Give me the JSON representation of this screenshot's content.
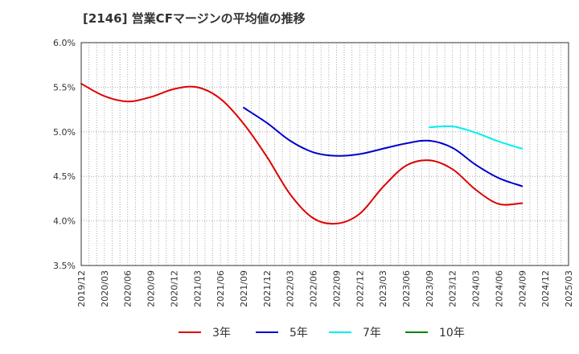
{
  "chart_data": {
    "type": "line",
    "title": "[2146]  営業CFマージンの平均値の推移",
    "xlabel": "",
    "ylabel": "",
    "ylim": [
      3.5,
      6.0
    ],
    "y_ticks": [
      "3.5%",
      "4.0%",
      "4.5%",
      "5.0%",
      "5.5%",
      "6.0%"
    ],
    "y_tick_values": [
      3.5,
      4.0,
      4.5,
      5.0,
      5.5,
      6.0
    ],
    "x_ticks": [
      "2019/12",
      "2020/03",
      "2020/06",
      "2020/09",
      "2020/12",
      "2021/03",
      "2021/06",
      "2021/09",
      "2021/12",
      "2022/03",
      "2022/06",
      "2022/09",
      "2022/12",
      "2023/03",
      "2023/06",
      "2023/09",
      "2023/12",
      "2024/03",
      "2024/06",
      "2024/09",
      "2024/12",
      "2025/03"
    ],
    "grid": true,
    "legend_position": "bottom",
    "series": [
      {
        "name": "3年",
        "color": "#dd0000",
        "x": [
          "2019/12",
          "2020/03",
          "2020/06",
          "2020/09",
          "2020/12",
          "2021/03",
          "2021/06",
          "2021/09",
          "2021/12",
          "2022/03",
          "2022/06",
          "2022/09",
          "2022/12",
          "2023/03",
          "2023/06",
          "2023/09",
          "2023/12",
          "2024/03",
          "2024/06",
          "2024/09"
        ],
        "values": [
          5.54,
          5.4,
          5.34,
          5.39,
          5.48,
          5.5,
          5.37,
          5.09,
          4.72,
          4.3,
          4.03,
          3.97,
          4.08,
          4.38,
          4.62,
          4.68,
          4.58,
          4.35,
          4.19,
          4.2
        ]
      },
      {
        "name": "5年",
        "color": "#0000cc",
        "x": [
          "2021/09",
          "2021/12",
          "2022/03",
          "2022/06",
          "2022/09",
          "2022/12",
          "2023/03",
          "2023/06",
          "2023/09",
          "2023/12",
          "2024/03",
          "2024/06",
          "2024/09"
        ],
        "values": [
          5.27,
          5.1,
          4.9,
          4.77,
          4.73,
          4.75,
          4.81,
          4.87,
          4.9,
          4.82,
          4.63,
          4.48,
          4.39
        ]
      },
      {
        "name": "7年",
        "color": "#00eeee",
        "x": [
          "2023/09",
          "2023/12",
          "2024/03",
          "2024/06",
          "2024/09"
        ],
        "values": [
          5.05,
          5.06,
          4.99,
          4.89,
          4.81
        ]
      },
      {
        "name": "10年",
        "color": "#008000",
        "x": [],
        "values": []
      }
    ]
  }
}
